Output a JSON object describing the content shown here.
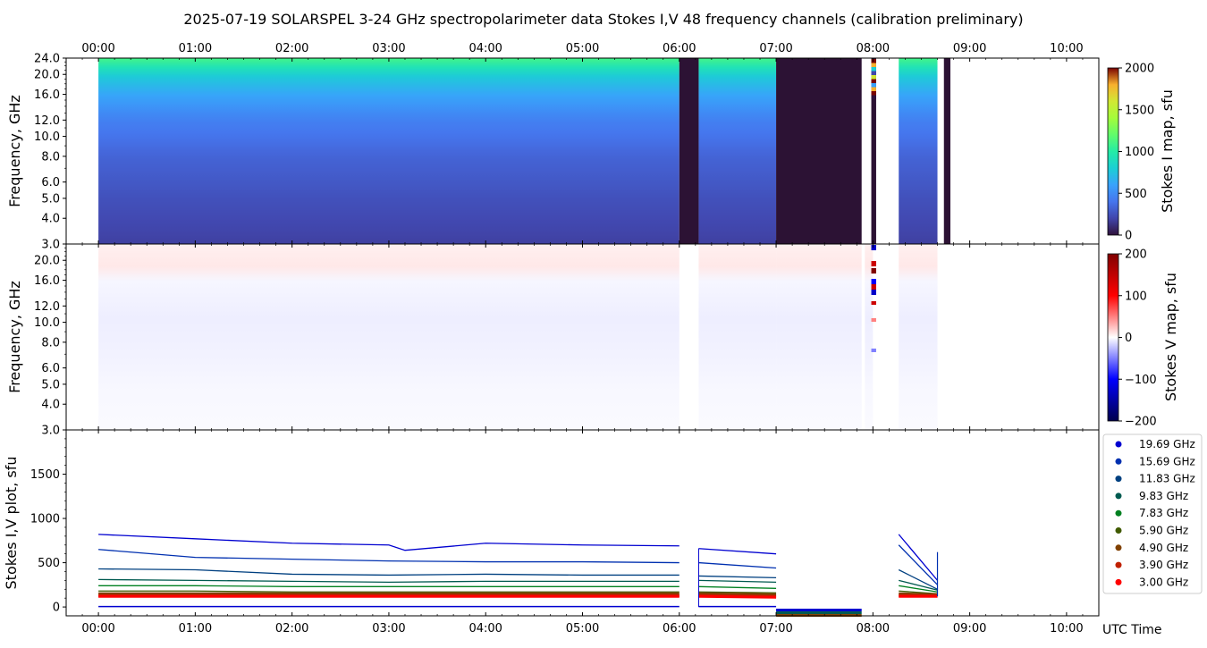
{
  "title": "2025-07-19  SOLARSPEL  3-24 GHz spectropolarimeter data   Stokes I,V   48 frequency channels   (calibration preliminary)",
  "colors": {
    "stokes_v_positive": "#cc0000",
    "stokes_v_negative": "#0000c8",
    "gap": "#2c1234"
  },
  "chart_data": [
    {
      "type": "heatmap",
      "ylabel": "Frequency, GHz",
      "yscale": "log",
      "ylim": [
        3.0,
        24.0
      ],
      "yticks": [
        "3.0",
        "4.0",
        "5.0",
        "6.0",
        "8.0",
        "10.0",
        "12.0",
        "16.0",
        "20.0",
        "24.0"
      ],
      "xlim": [
        "23:40",
        "10:20"
      ],
      "xticks": [
        "00:00",
        "01:00",
        "02:00",
        "03:00",
        "04:00",
        "05:00",
        "06:00",
        "07:00",
        "08:00",
        "09:00",
        "10:00"
      ],
      "colorbar": {
        "label": "Stokes I map, sfu",
        "range": [
          0,
          2000
        ],
        "ticks": [
          "0",
          "500",
          "1000",
          "1500",
          "2000"
        ],
        "colormap": "turbo"
      },
      "data_spans": [
        [
          "00:00",
          "06:00"
        ],
        [
          "06:12",
          "07:00"
        ],
        [
          "08:16",
          "08:40"
        ]
      ],
      "gap_spans": [
        [
          "06:00",
          "06:12"
        ],
        [
          "07:00",
          "07:53"
        ],
        [
          "08:44",
          "08:48"
        ]
      ],
      "burst_span": [
        "07:59",
        "08:02"
      ],
      "spectrum_typical": [
        {
          "f": 3.0,
          "v": 180
        },
        {
          "f": 5.0,
          "v": 250
        },
        {
          "f": 8.0,
          "v": 330
        },
        {
          "f": 12.0,
          "v": 450
        },
        {
          "f": 16.0,
          "v": 620
        },
        {
          "f": 20.0,
          "v": 800
        },
        {
          "f": 24.0,
          "v": 1100
        }
      ]
    },
    {
      "type": "heatmap",
      "ylabel": "Frequency, GHz",
      "yscale": "log",
      "ylim": [
        3.0,
        24.0
      ],
      "yticks": [
        "3.0",
        "4.0",
        "5.0",
        "6.0",
        "8.0",
        "10.0",
        "12.0",
        "16.0",
        "20.0"
      ],
      "xlim": [
        "23:40",
        "10:20"
      ],
      "colorbar": {
        "label": "Stokes V map, sfu",
        "range": [
          -200,
          200
        ],
        "ticks": [
          "−200",
          "−100",
          "0",
          "100",
          "200"
        ],
        "colormap": "seismic"
      },
      "data_spans": [
        [
          "00:00",
          "06:00"
        ],
        [
          "06:12",
          "07:00"
        ],
        [
          "07:00",
          "07:53"
        ],
        [
          "07:55",
          "08:00"
        ],
        [
          "08:16",
          "08:40"
        ]
      ],
      "burst_span": [
        "07:59",
        "08:02"
      ]
    },
    {
      "type": "line",
      "ylabel": "Stokes I,V plot, sfu",
      "xlabel": "UTC Time",
      "ylim": [
        -100,
        2000
      ],
      "yticks": [
        "0",
        "500",
        "1000",
        "1500"
      ],
      "xlim": [
        "23:40",
        "10:20"
      ],
      "xticks": [
        "00:00",
        "01:00",
        "02:00",
        "03:00",
        "04:00",
        "05:00",
        "06:00",
        "07:00",
        "08:00",
        "09:00",
        "10:00"
      ],
      "legend_position": "outside-right",
      "series": [
        {
          "name": "19.69 GHz",
          "color": "#0000d0",
          "x": [
            "00:00",
            "01:00",
            "02:00",
            "03:00",
            "03:10",
            "04:00",
            "05:00",
            "06:00",
            "06:12",
            "07:00",
            "08:16",
            "08:40"
          ],
          "y": [
            820,
            770,
            720,
            700,
            640,
            720,
            700,
            690,
            660,
            600,
            820,
            300
          ]
        },
        {
          "name": "15.69 GHz",
          "color": "#0030b0",
          "x": [
            "00:00",
            "01:00",
            "02:00",
            "03:00",
            "04:00",
            "05:00",
            "06:00",
            "06:12",
            "07:00",
            "08:16",
            "08:40"
          ],
          "y": [
            650,
            560,
            540,
            520,
            510,
            510,
            500,
            500,
            440,
            700,
            250
          ]
        },
        {
          "name": "11.83 GHz",
          "color": "#004080",
          "x": [
            "00:00",
            "01:00",
            "02:00",
            "03:00",
            "04:00",
            "05:00",
            "06:00",
            "06:12",
            "07:00",
            "08:16",
            "08:40"
          ],
          "y": [
            430,
            420,
            370,
            360,
            370,
            360,
            360,
            350,
            330,
            420,
            200
          ]
        },
        {
          "name": "9.83 GHz",
          "color": "#005a50",
          "x": [
            "00:00",
            "01:00",
            "02:00",
            "03:00",
            "04:00",
            "05:00",
            "06:00",
            "06:12",
            "07:00",
            "08:16",
            "08:40"
          ],
          "y": [
            310,
            300,
            290,
            280,
            290,
            290,
            290,
            300,
            280,
            300,
            190
          ]
        },
        {
          "name": "7.83 GHz",
          "color": "#008020",
          "x": [
            "00:00",
            "01:00",
            "02:00",
            "03:00",
            "04:00",
            "05:00",
            "06:00",
            "06:12",
            "07:00",
            "08:16",
            "08:40"
          ],
          "y": [
            240,
            240,
            230,
            230,
            230,
            230,
            230,
            230,
            210,
            240,
            170
          ]
        },
        {
          "name": "5.90 GHz",
          "color": "#405a00",
          "x": [
            "00:00",
            "01:00",
            "02:00",
            "03:00",
            "04:00",
            "05:00",
            "06:00",
            "06:12",
            "07:00",
            "08:16",
            "08:40"
          ],
          "y": [
            180,
            180,
            170,
            170,
            170,
            170,
            170,
            170,
            160,
            180,
            150
          ]
        },
        {
          "name": "4.90 GHz",
          "color": "#804000",
          "x": [
            "00:00",
            "01:00",
            "02:00",
            "03:00",
            "04:00",
            "05:00",
            "06:00",
            "06:12",
            "07:00",
            "08:16",
            "08:40"
          ],
          "y": [
            150,
            150,
            150,
            150,
            150,
            150,
            150,
            150,
            140,
            150,
            140
          ]
        },
        {
          "name": "3.90 GHz",
          "color": "#c02000",
          "x": [
            "00:00",
            "01:00",
            "02:00",
            "03:00",
            "04:00",
            "05:00",
            "06:00",
            "06:12",
            "07:00",
            "08:16",
            "08:40"
          ],
          "y": [
            130,
            130,
            130,
            130,
            130,
            130,
            130,
            130,
            120,
            130,
            130
          ]
        },
        {
          "name": "3.00 GHz",
          "color": "#ff0000",
          "x": [
            "00:00",
            "01:00",
            "02:00",
            "03:00",
            "04:00",
            "05:00",
            "06:00",
            "06:12",
            "07:00",
            "08:16",
            "08:40"
          ],
          "y": [
            120,
            120,
            120,
            120,
            120,
            120,
            120,
            120,
            110,
            120,
            120
          ]
        }
      ],
      "stokes_v_trace": {
        "color": "#0000d0",
        "x": [
          "00:00",
          "06:00",
          "06:12",
          "07:00"
        ],
        "y": [
          5,
          5,
          5,
          5
        ]
      },
      "offline_trace": {
        "x": [
          "07:00",
          "07:53"
        ],
        "y": [
          -60,
          -60
        ]
      }
    }
  ]
}
